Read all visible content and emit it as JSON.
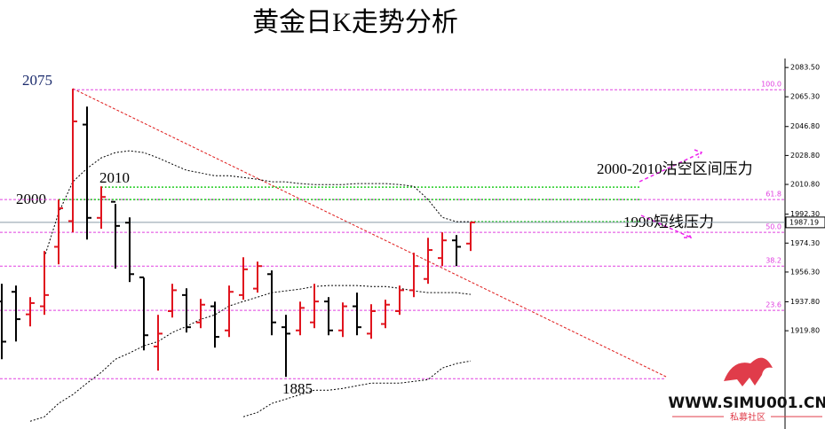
{
  "chart_data": {
    "type": "ohlc",
    "title": "黄金日K走势分析",
    "ylim": [
      1862,
      2088
    ],
    "yticks": [
      {
        "value": 2083.5,
        "label": "2083.50"
      },
      {
        "value": 2065.3,
        "label": "2065.30"
      },
      {
        "value": 2046.8,
        "label": "2046.80"
      },
      {
        "value": 2028.8,
        "label": "2028.80"
      },
      {
        "value": 2010.8,
        "label": "2010.80"
      },
      {
        "value": 1992.3,
        "label": "1992.30"
      },
      {
        "value": 1974.3,
        "label": "1974.30"
      },
      {
        "value": 1956.3,
        "label": "1956.30"
      },
      {
        "value": 1937.8,
        "label": "1937.80"
      },
      {
        "value": 1919.8,
        "label": "1919.80"
      }
    ],
    "up_color": "#e0141e",
    "down_color": "#000000",
    "open": [
      1938,
      1944,
      1930,
      1935,
      1972,
      1988,
      2048,
      1990,
      2000,
      1987,
      1953,
      1910,
      1932,
      1942,
      1925,
      1935,
      1920,
      1942,
      1946,
      1955,
      1922,
      1920,
      1925,
      1938,
      1920,
      1935,
      1918,
      1924,
      1932,
      1945,
      1952,
      1965,
      1976,
      1974
    ],
    "high": [
      1949.0,
      1947.9,
      1940.7,
      1969.4,
      2001.4,
      2070.3,
      2059.2,
      2009.6,
      1998.6,
      1990.3,
      1952.8,
      1929.7,
      1949.0,
      1946.2,
      1939.6,
      1937.9,
      1947.9,
      1965.5,
      1962.8,
      1957.3,
      1929.7,
      1937.9,
      1949.0,
      1940.7,
      1937.4,
      1943.5,
      1936.3,
      1939.1,
      1947.9,
      1968.3,
      1977.6,
      1981.0,
      1979.3,
      1987.5
    ],
    "low": [
      1902.1,
      1913.1,
      1922.5,
      1929.7,
      1961.1,
      1981.0,
      1976.5,
      1983.2,
      1958.4,
      1950.1,
      1907.6,
      1895.0,
      1928.0,
      1918.7,
      1921.4,
      1909.3,
      1915.9,
      1939.1,
      1943.5,
      1917.0,
      1891.1,
      1917.0,
      1921.4,
      1917.0,
      1915.9,
      1917.0,
      1914.8,
      1921.4,
      1929.7,
      1940.7,
      1949.0,
      1960.0,
      1960.0,
      1969.4
    ],
    "close": [
      1913,
      1927,
      1937,
      1942,
      1996,
      2050,
      1990,
      2003,
      1985,
      1955,
      1917,
      1918,
      1945,
      1922,
      1936,
      1916,
      1944,
      1958,
      1960,
      1925,
      1918,
      1934,
      1938,
      1920,
      1935,
      1922,
      1932,
      1936,
      1945,
      1960,
      1970,
      1976,
      1972,
      1987.19
    ],
    "bands": [
      {
        "color": "#000000",
        "values": [
          null,
          null,
          null,
          1965.5,
          1993.1,
          2012.4,
          2020.7,
          2027.3,
          2030.6,
          2031.7,
          2030.6,
          2027.3,
          2023.4,
          2019.6,
          2017.9,
          2016.2,
          2016.2,
          2015.1,
          2014.0,
          2012.4,
          2012.4,
          2011.3,
          2010.7,
          2010.7,
          2010.7,
          2011.3,
          2011.3,
          2011.3,
          2010.7,
          2009.6,
          2001.4,
          1990.3,
          1987.6,
          1987.6
        ]
      },
      {
        "color": "#000000",
        "values": [
          null,
          null,
          1863.5,
          1866.3,
          1874.6,
          1880.1,
          1887.2,
          1893.9,
          1902.1,
          1906.0,
          1910.4,
          1913.1,
          1918.7,
          1922.5,
          1926.9,
          1929.7,
          1935.2,
          1938.0,
          1940.7,
          1943.5,
          1944.6,
          1945.7,
          1947.3,
          1947.9,
          1947.9,
          1947.9,
          1947.3,
          1947.3,
          1946.2,
          1944.6,
          1943.5,
          1943.5,
          1943.5,
          1942.4
        ]
      },
      {
        "color": "#000000",
        "values": [
          null,
          null,
          null,
          null,
          null,
          null,
          null,
          null,
          null,
          null,
          null,
          null,
          null,
          null,
          null,
          null,
          null,
          1866.3,
          1869.0,
          1874.6,
          1877.3,
          1880.1,
          1882.8,
          1882.8,
          1883.9,
          1885.6,
          1887.2,
          1887.2,
          1887.2,
          1888.3,
          1889.4,
          1896.6,
          1899.4,
          1901.0
        ]
      }
    ],
    "fib_color": "#e040e0",
    "fib_levels": [
      {
        "value": 2069.7,
        "label": "100.0"
      },
      {
        "value": 2001.4,
        "label": "61.8"
      },
      {
        "value": 1981.0,
        "label": "50.0"
      },
      {
        "value": 1960.0,
        "label": "38.2"
      },
      {
        "value": 1932.5,
        "label": "23.6"
      },
      {
        "value": 1890.0
      }
    ],
    "resistance_color": "#22cc22",
    "resistance_lines": [
      2009.1,
      2001.4,
      1987.6
    ],
    "last_price": 1987.19,
    "annotations": [
      "2075",
      "2010",
      "2000",
      "1885",
      "2000-2010沽空区间压力",
      "1990短线压力"
    ],
    "watermark": {
      "site": "WWW.SIMU001.CN",
      "name": "私募社区"
    }
  }
}
